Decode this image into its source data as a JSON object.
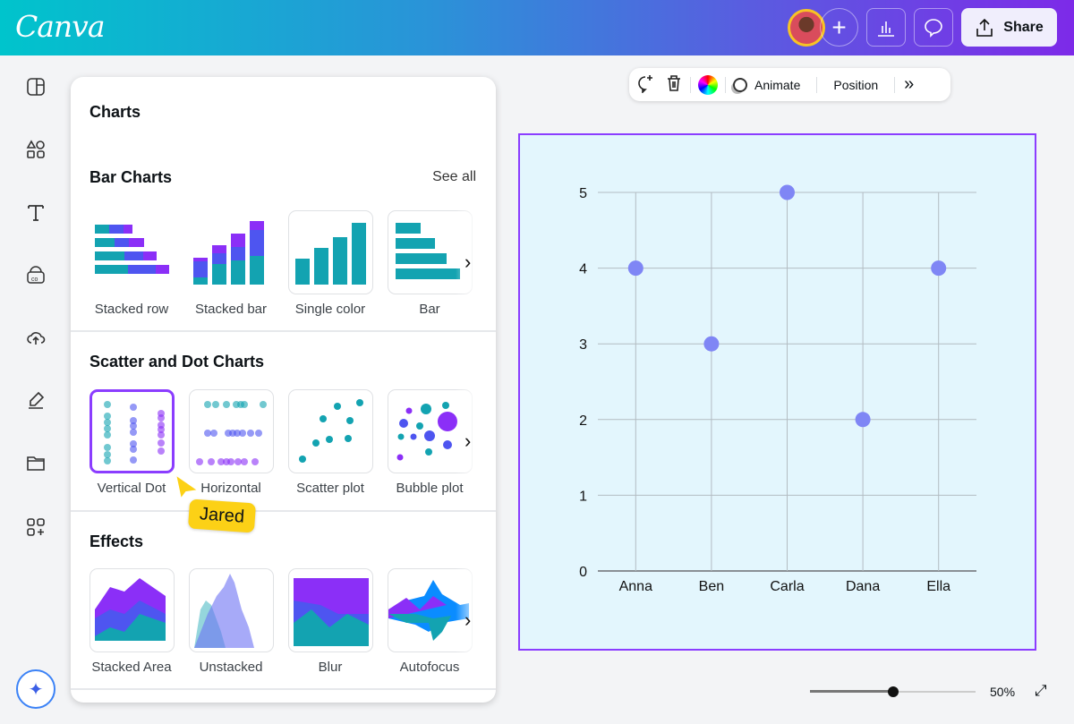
{
  "header": {
    "logo": "Canva",
    "share_label": "Share",
    "icons": [
      "add-icon",
      "insights-icon",
      "comment-icon",
      "share-upload-icon"
    ]
  },
  "sidebar": {
    "items": [
      "design-icon",
      "elements-icon",
      "text-icon",
      "brand-icon",
      "uploads-icon",
      "draw-icon",
      "projects-icon",
      "apps-icon"
    ],
    "magic": "magic-sparkle-icon"
  },
  "panel": {
    "title": "Charts",
    "sections": [
      {
        "title": "Bar Charts",
        "see_all": "See all",
        "items": [
          "Stacked row",
          "Stacked bar",
          "Single color",
          "Bar"
        ]
      },
      {
        "title": "Scatter and Dot Charts",
        "items": [
          "Vertical Dot",
          "Horizontal",
          "Scatter plot",
          "Bubble plot"
        ]
      },
      {
        "title": "Effects",
        "items": [
          "Stacked Area",
          "Unstacked",
          "Blur",
          "Autofocus"
        ]
      }
    ]
  },
  "toolbar": {
    "animate": "Animate",
    "position": "Position"
  },
  "collaborator": {
    "name": "Jared",
    "color": "#fcd116"
  },
  "colors": {
    "teal": "#13a3b1",
    "blue": "#4e55f0",
    "purple": "#8b2ff7",
    "selection": "#8b3dff",
    "canvas_bg": "#e3f6fd",
    "point": "#7f86f5"
  },
  "zoom": {
    "level": "50%",
    "fraction": 0.5
  },
  "chart_data": {
    "type": "scatter",
    "categories": [
      "Anna",
      "Ben",
      "Carla",
      "Dana",
      "Ella"
    ],
    "values": [
      4,
      3,
      5,
      2,
      4
    ],
    "yticks": [
      "0",
      "1",
      "2",
      "3",
      "4",
      "5"
    ],
    "ylim": [
      0,
      5
    ],
    "grid": true
  }
}
